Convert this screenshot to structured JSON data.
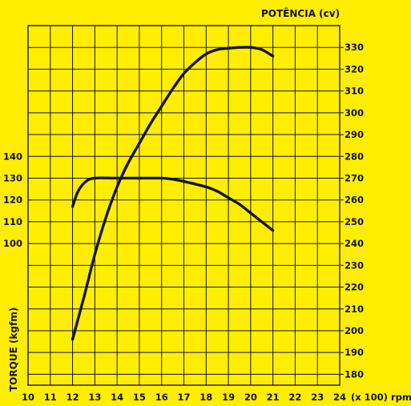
{
  "colors": {
    "background": "#ffee00",
    "ink": "#151515"
  },
  "chart_data": {
    "type": "line",
    "title": "",
    "right_axis_label": "POTÊNCIA (cv)",
    "left_axis_label": "TORQUE (kgfm)",
    "x_unit_label": "(x 100) rpm",
    "xlim": [
      10,
      24
    ],
    "x_ticks": [
      "10",
      "11",
      "12",
      "13",
      "14",
      "15",
      "16",
      "17",
      "18",
      "19",
      "20",
      "21",
      "22",
      "23",
      "24"
    ],
    "right_ylim": [
      175,
      340
    ],
    "right_ticks": [
      "180",
      "190",
      "200",
      "210",
      "220",
      "230",
      "240",
      "250",
      "260",
      "270",
      "280",
      "290",
      "300",
      "310",
      "320",
      "330"
    ],
    "left_ticks": [
      "100",
      "110",
      "120",
      "130",
      "140"
    ],
    "left_tick_values": [
      100,
      110,
      120,
      130,
      140
    ],
    "left_tick_map_to_right": [
      240,
      250,
      260,
      270,
      280
    ],
    "grid": true,
    "series": [
      {
        "name": "",
        "axis": "right",
        "values_right_scale": [
          [
            12,
            196
          ],
          [
            12.5,
            215
          ],
          [
            13,
            235
          ],
          [
            13.5,
            252
          ],
          [
            14,
            266
          ],
          [
            14.5,
            277
          ],
          [
            15,
            286
          ],
          [
            15.5,
            295
          ],
          [
            16,
            303
          ],
          [
            16.5,
            311
          ],
          [
            17,
            318
          ],
          [
            17.5,
            323
          ],
          [
            18,
            327
          ],
          [
            18.5,
            329
          ],
          [
            19,
            329.6
          ],
          [
            19.5,
            330
          ],
          [
            20,
            330
          ],
          [
            20.5,
            329
          ],
          [
            21,
            326
          ]
        ],
        "torque_kgfm_estimate": [
          [
            12,
            107
          ],
          [
            12.5,
            118
          ],
          [
            13,
            125
          ],
          [
            13.5,
            129
          ],
          [
            14,
            131
          ],
          [
            14.5,
            131
          ],
          [
            15,
            130
          ],
          [
            15.5,
            130
          ],
          [
            16,
            130
          ],
          [
            16.5,
            130
          ],
          [
            17,
            130
          ],
          [
            17.5,
            128
          ],
          [
            18,
            126
          ],
          [
            18.5,
            123
          ],
          [
            19,
            120
          ],
          [
            19.5,
            117
          ],
          [
            20,
            114
          ],
          [
            20.5,
            110
          ],
          [
            21,
            106
          ]
        ]
      },
      {
        "name": "",
        "axis": "left",
        "values": [
          [
            12,
            117
          ],
          [
            12.25,
            124
          ],
          [
            12.6,
            128.5
          ],
          [
            13,
            130
          ],
          [
            14,
            130
          ],
          [
            15,
            130
          ],
          [
            16,
            130
          ],
          [
            16.5,
            129.5
          ],
          [
            17,
            128.5
          ],
          [
            18,
            126
          ],
          [
            18.5,
            124
          ],
          [
            19,
            121
          ],
          [
            19.5,
            118
          ],
          [
            20,
            114
          ],
          [
            20.5,
            110
          ],
          [
            21,
            106
          ]
        ]
      }
    ]
  }
}
